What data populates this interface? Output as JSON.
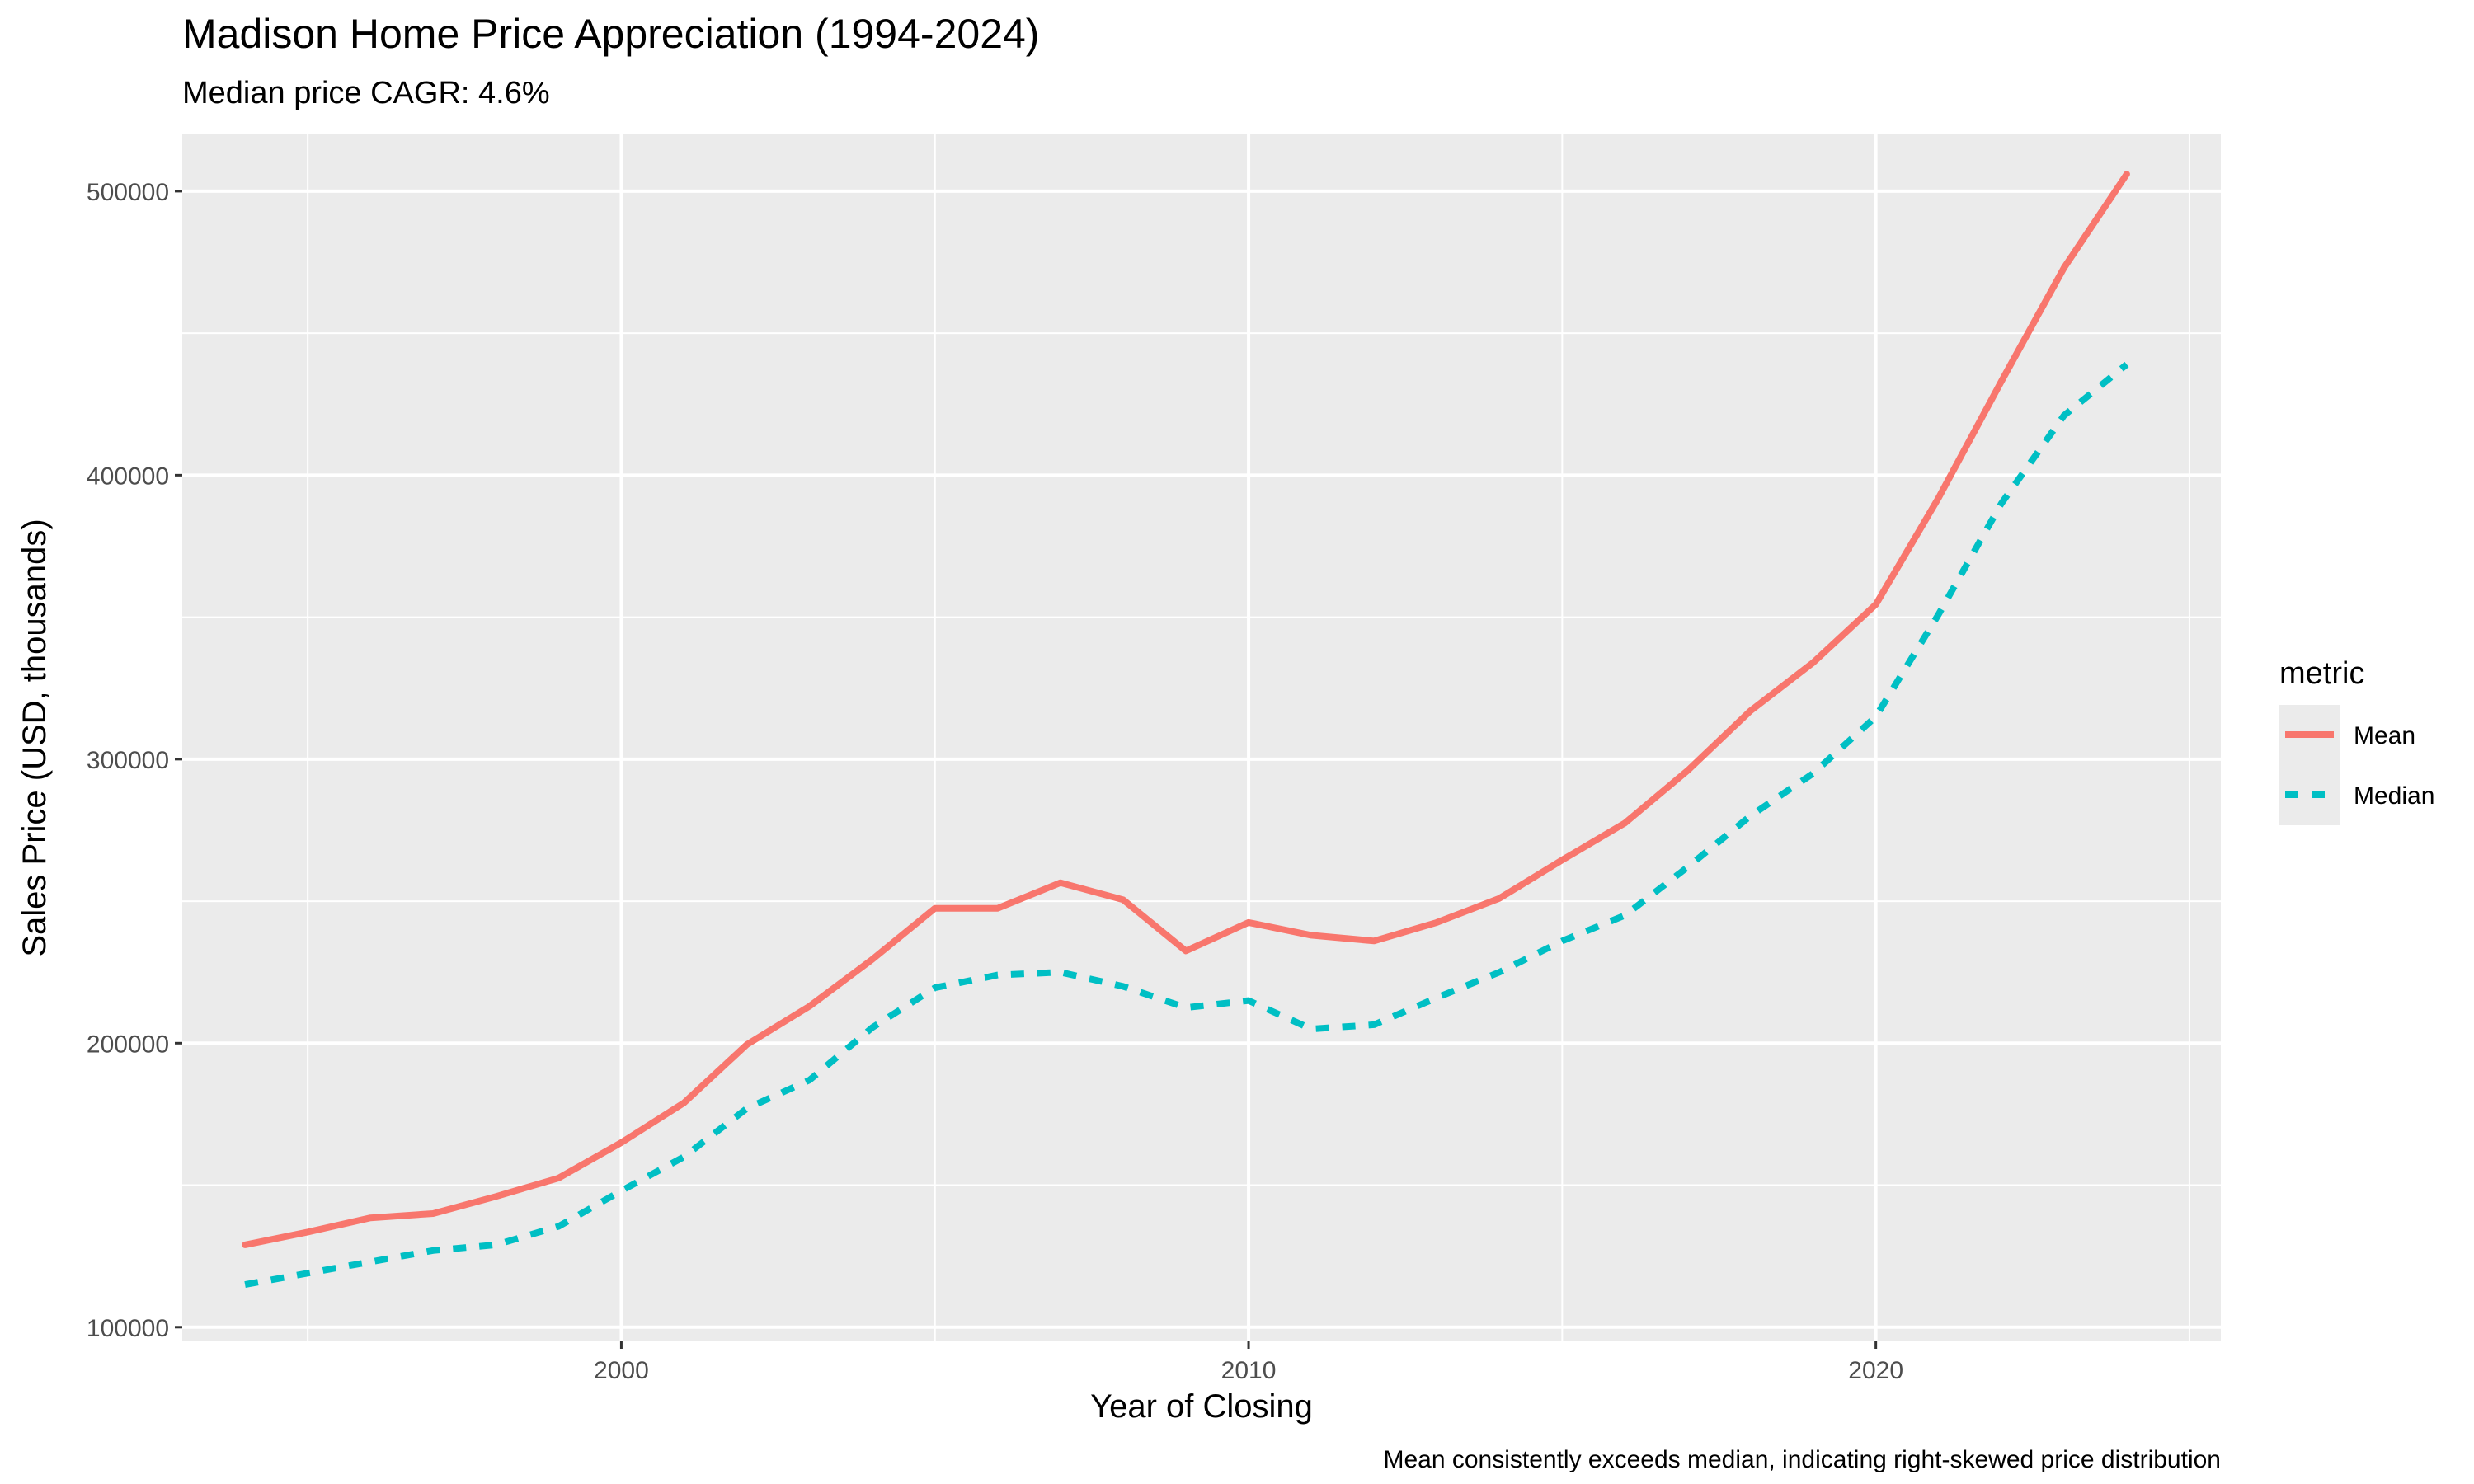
{
  "title": "Madison Home Price Appreciation (1994-2024)",
  "subtitle": "Median price CAGR: 4.6%",
  "caption": "Mean consistently exceeds median, indicating right-skewed price distribution",
  "chart_data": {
    "type": "line",
    "title": "Madison Home Price Appreciation (1994-2024)",
    "subtitle": "Median price CAGR: 4.6%",
    "xlabel": "Year of Closing",
    "ylabel": "Sales Price (USD, thousands)",
    "caption": "Mean consistently exceeds median, indicating right-skewed price distribution",
    "xlim": [
      1993,
      2025.5
    ],
    "ylim": [
      95000,
      520000
    ],
    "x_ticks": [
      2000,
      2010,
      2020
    ],
    "y_ticks": [
      100000,
      200000,
      300000,
      400000,
      500000
    ],
    "x_tick_labels": [
      "2000",
      "2010",
      "2020"
    ],
    "y_tick_labels": [
      "100000",
      "200000",
      "300000",
      "400000",
      "500000"
    ],
    "grid": true,
    "legend_title": "metric",
    "legend_position": "right",
    "x": [
      1994,
      1995,
      1996,
      1997,
      1998,
      1999,
      2000,
      2001,
      2002,
      2003,
      2004,
      2005,
      2006,
      2007,
      2008,
      2009,
      2010,
      2011,
      2012,
      2013,
      2014,
      2015,
      2016,
      2017,
      2018,
      2019,
      2020,
      2021,
      2022,
      2023,
      2024
    ],
    "series": [
      {
        "name": "Mean",
        "color": "#F8766D",
        "dash": "solid",
        "values": [
          129000,
          133500,
          138500,
          140000,
          146000,
          152500,
          165000,
          179000,
          199500,
          213000,
          229500,
          247500,
          247500,
          256500,
          250500,
          232500,
          242500,
          238000,
          236000,
          242500,
          251000,
          264500,
          277500,
          296000,
          317000,
          334000,
          354500,
          392000,
          433000,
          473000,
          506000
        ]
      },
      {
        "name": "Median",
        "color": "#00BFC4",
        "dash": "dashed",
        "values": [
          115000,
          119000,
          123000,
          127000,
          129000,
          135500,
          148000,
          160000,
          177000,
          187000,
          205500,
          219500,
          224000,
          225000,
          220000,
          212500,
          215000,
          205000,
          206500,
          216000,
          225000,
          236000,
          245000,
          262000,
          280000,
          295000,
          315000,
          351000,
          390000,
          421000,
          439000
        ]
      }
    ]
  }
}
